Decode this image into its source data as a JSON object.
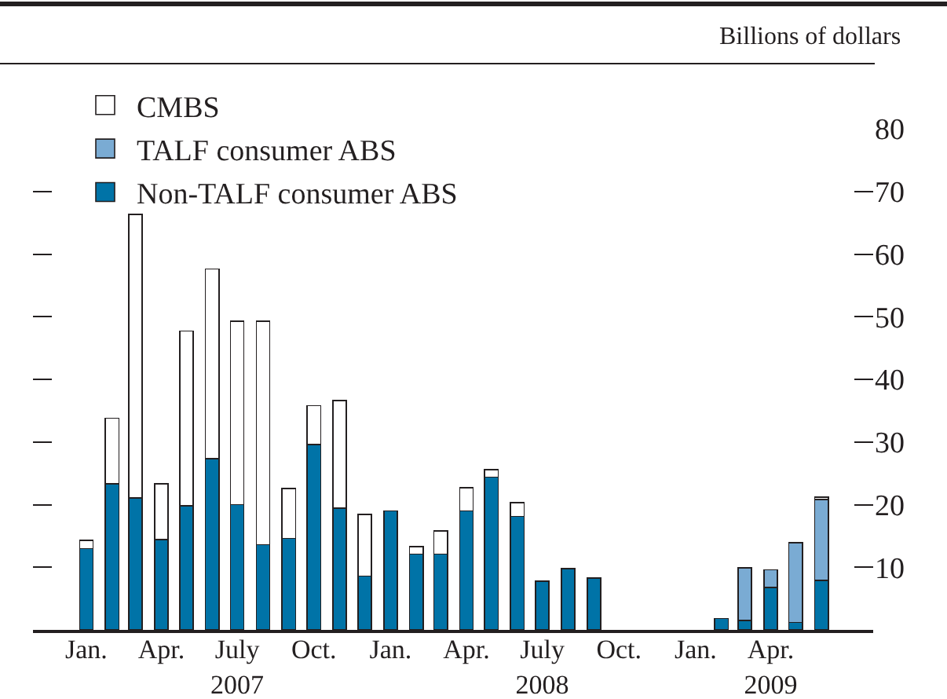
{
  "chart_data": {
    "type": "bar",
    "stacked": true,
    "ylabel": "Billions of dollars",
    "x": [
      "2007-01",
      "2007-02",
      "2007-03",
      "2007-04",
      "2007-05",
      "2007-06",
      "2007-07",
      "2007-08",
      "2007-09",
      "2007-10",
      "2007-11",
      "2007-12",
      "2008-01",
      "2008-02",
      "2008-03",
      "2008-04",
      "2008-05",
      "2008-06",
      "2008-07",
      "2008-08",
      "2008-09",
      "2008-10",
      "2008-11",
      "2008-12",
      "2009-01",
      "2009-02",
      "2009-03",
      "2009-04",
      "2009-05",
      "2009-06"
    ],
    "series": [
      {
        "name": "Non-TALF consumer ABS",
        "color": "#0073a7",
        "values": [
          13.0,
          23.3,
          21.1,
          14.4,
          19.8,
          27.3,
          20.0,
          13.6,
          14.6,
          29.6,
          19.4,
          8.6,
          19.0,
          12.1,
          12.1,
          19.0,
          24.4,
          18.1,
          7.8,
          9.8,
          8.3,
          null,
          null,
          null,
          null,
          1.8,
          1.5,
          6.8,
          1.2,
          7.9
        ]
      },
      {
        "name": "TALF consumer ABS",
        "color": "#7aabd3",
        "values": [
          null,
          null,
          null,
          null,
          null,
          null,
          null,
          null,
          null,
          null,
          null,
          null,
          null,
          null,
          null,
          null,
          null,
          null,
          null,
          null,
          null,
          null,
          null,
          null,
          null,
          null,
          8.4,
          2.8,
          12.7,
          12.9
        ]
      },
      {
        "name": "CMBS",
        "color": "#ffffff",
        "values": [
          1.3,
          10.5,
          45.2,
          8.9,
          27.9,
          30.3,
          29.3,
          35.7,
          8.0,
          6.2,
          17.2,
          9.8,
          null,
          1.2,
          3.7,
          3.7,
          1.2,
          2.2,
          null,
          null,
          null,
          null,
          null,
          null,
          null,
          null,
          null,
          null,
          null,
          0.4
        ]
      }
    ],
    "xlim": [
      "2006-10-29",
      "2009-08-02"
    ],
    "xticks": [
      {
        "value": "2007-01",
        "label": "Jan."
      },
      {
        "value": "2007-04",
        "label": "Apr."
      },
      {
        "value": "2007-07",
        "label": "July\n2007"
      },
      {
        "value": "2007-10",
        "label": "Oct."
      },
      {
        "value": "2008-01",
        "label": "Jan."
      },
      {
        "value": "2008-04",
        "label": "Apr."
      },
      {
        "value": "2008-07",
        "label": "July\n2008"
      },
      {
        "value": "2008-10",
        "label": "Oct."
      },
      {
        "value": "2009-01",
        "label": "Jan."
      },
      {
        "value": "2009-04",
        "label": "Apr.\n2009"
      }
    ],
    "ylim": [
      0,
      80
    ],
    "yticks": [
      10,
      20,
      30,
      40,
      50,
      60,
      70,
      80
    ],
    "grid": false,
    "legend": "top left"
  }
}
